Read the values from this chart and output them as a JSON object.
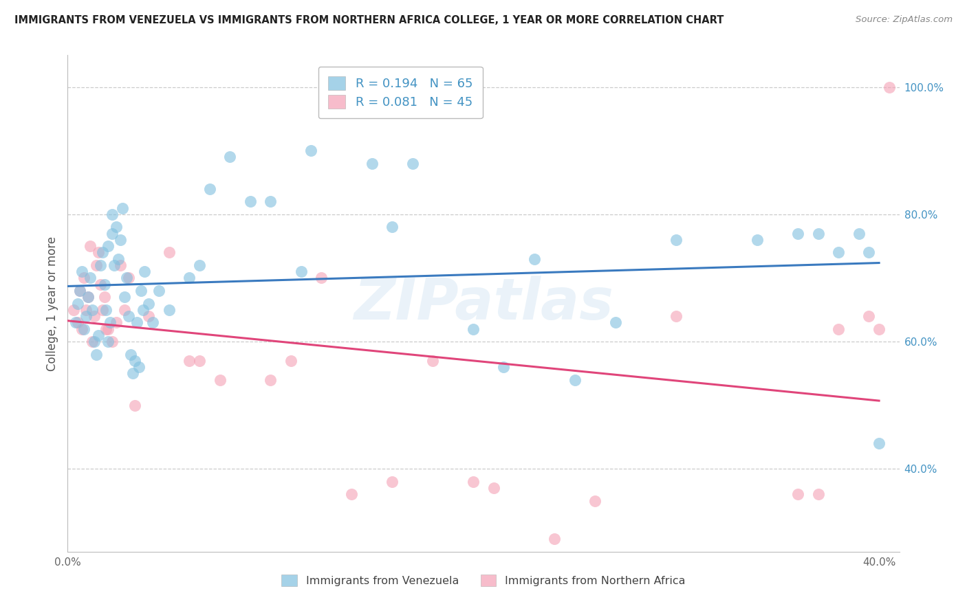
{
  "title": "IMMIGRANTS FROM VENEZUELA VS IMMIGRANTS FROM NORTHERN AFRICA COLLEGE, 1 YEAR OR MORE CORRELATION CHART",
  "source": "Source: ZipAtlas.com",
  "ylabel": "College, 1 year or more",
  "xlim": [
    0.0,
    0.41
  ],
  "ylim": [
    0.27,
    1.05
  ],
  "xtick_positions": [
    0.0,
    0.05,
    0.1,
    0.15,
    0.2,
    0.25,
    0.3,
    0.35,
    0.4
  ],
  "xticklabels": [
    "0.0%",
    "",
    "",
    "",
    "",
    "",
    "",
    "",
    "40.0%"
  ],
  "ytick_right_positions": [
    0.4,
    0.6,
    0.8,
    1.0
  ],
  "yticklabels_right": [
    "40.0%",
    "60.0%",
    "80.0%",
    "100.0%"
  ],
  "legend1_label": "R = 0.194   N = 65",
  "legend2_label": "R = 0.081   N = 45",
  "blue_color": "#7fbfdf",
  "pink_color": "#f4a0b5",
  "trend_blue": "#3a7abf",
  "trend_pink": "#e0457a",
  "grid_color": "#cccccc",
  "watermark": "ZIPatlas",
  "blue_x": [
    0.004,
    0.005,
    0.006,
    0.007,
    0.008,
    0.009,
    0.01,
    0.011,
    0.012,
    0.013,
    0.014,
    0.015,
    0.016,
    0.017,
    0.018,
    0.019,
    0.02,
    0.02,
    0.021,
    0.022,
    0.022,
    0.023,
    0.024,
    0.025,
    0.026,
    0.027,
    0.028,
    0.029,
    0.03,
    0.031,
    0.032,
    0.033,
    0.034,
    0.035,
    0.036,
    0.037,
    0.038,
    0.04,
    0.042,
    0.045,
    0.05,
    0.06,
    0.065,
    0.07,
    0.08,
    0.09,
    0.1,
    0.115,
    0.12,
    0.15,
    0.16,
    0.17,
    0.2,
    0.215,
    0.23,
    0.25,
    0.27,
    0.3,
    0.34,
    0.36,
    0.37,
    0.38,
    0.39,
    0.395,
    0.4
  ],
  "blue_y": [
    0.63,
    0.66,
    0.68,
    0.71,
    0.62,
    0.64,
    0.67,
    0.7,
    0.65,
    0.6,
    0.58,
    0.61,
    0.72,
    0.74,
    0.69,
    0.65,
    0.6,
    0.75,
    0.63,
    0.77,
    0.8,
    0.72,
    0.78,
    0.73,
    0.76,
    0.81,
    0.67,
    0.7,
    0.64,
    0.58,
    0.55,
    0.57,
    0.63,
    0.56,
    0.68,
    0.65,
    0.71,
    0.66,
    0.63,
    0.68,
    0.65,
    0.7,
    0.72,
    0.84,
    0.89,
    0.82,
    0.82,
    0.71,
    0.9,
    0.88,
    0.78,
    0.88,
    0.62,
    0.56,
    0.73,
    0.54,
    0.63,
    0.76,
    0.76,
    0.77,
    0.77,
    0.74,
    0.77,
    0.74,
    0.44
  ],
  "pink_x": [
    0.003,
    0.005,
    0.006,
    0.007,
    0.008,
    0.009,
    0.01,
    0.011,
    0.012,
    0.013,
    0.014,
    0.015,
    0.016,
    0.017,
    0.018,
    0.019,
    0.02,
    0.022,
    0.024,
    0.026,
    0.028,
    0.03,
    0.033,
    0.04,
    0.05,
    0.06,
    0.065,
    0.075,
    0.1,
    0.11,
    0.125,
    0.14,
    0.16,
    0.18,
    0.2,
    0.21,
    0.24,
    0.26,
    0.3,
    0.36,
    0.37,
    0.38,
    0.395,
    0.4,
    0.405
  ],
  "pink_y": [
    0.65,
    0.63,
    0.68,
    0.62,
    0.7,
    0.65,
    0.67,
    0.75,
    0.6,
    0.64,
    0.72,
    0.74,
    0.69,
    0.65,
    0.67,
    0.62,
    0.62,
    0.6,
    0.63,
    0.72,
    0.65,
    0.7,
    0.5,
    0.64,
    0.74,
    0.57,
    0.57,
    0.54,
    0.54,
    0.57,
    0.7,
    0.36,
    0.38,
    0.57,
    0.38,
    0.37,
    0.29,
    0.35,
    0.64,
    0.36,
    0.36,
    0.62,
    0.64,
    0.62,
    1.0
  ]
}
